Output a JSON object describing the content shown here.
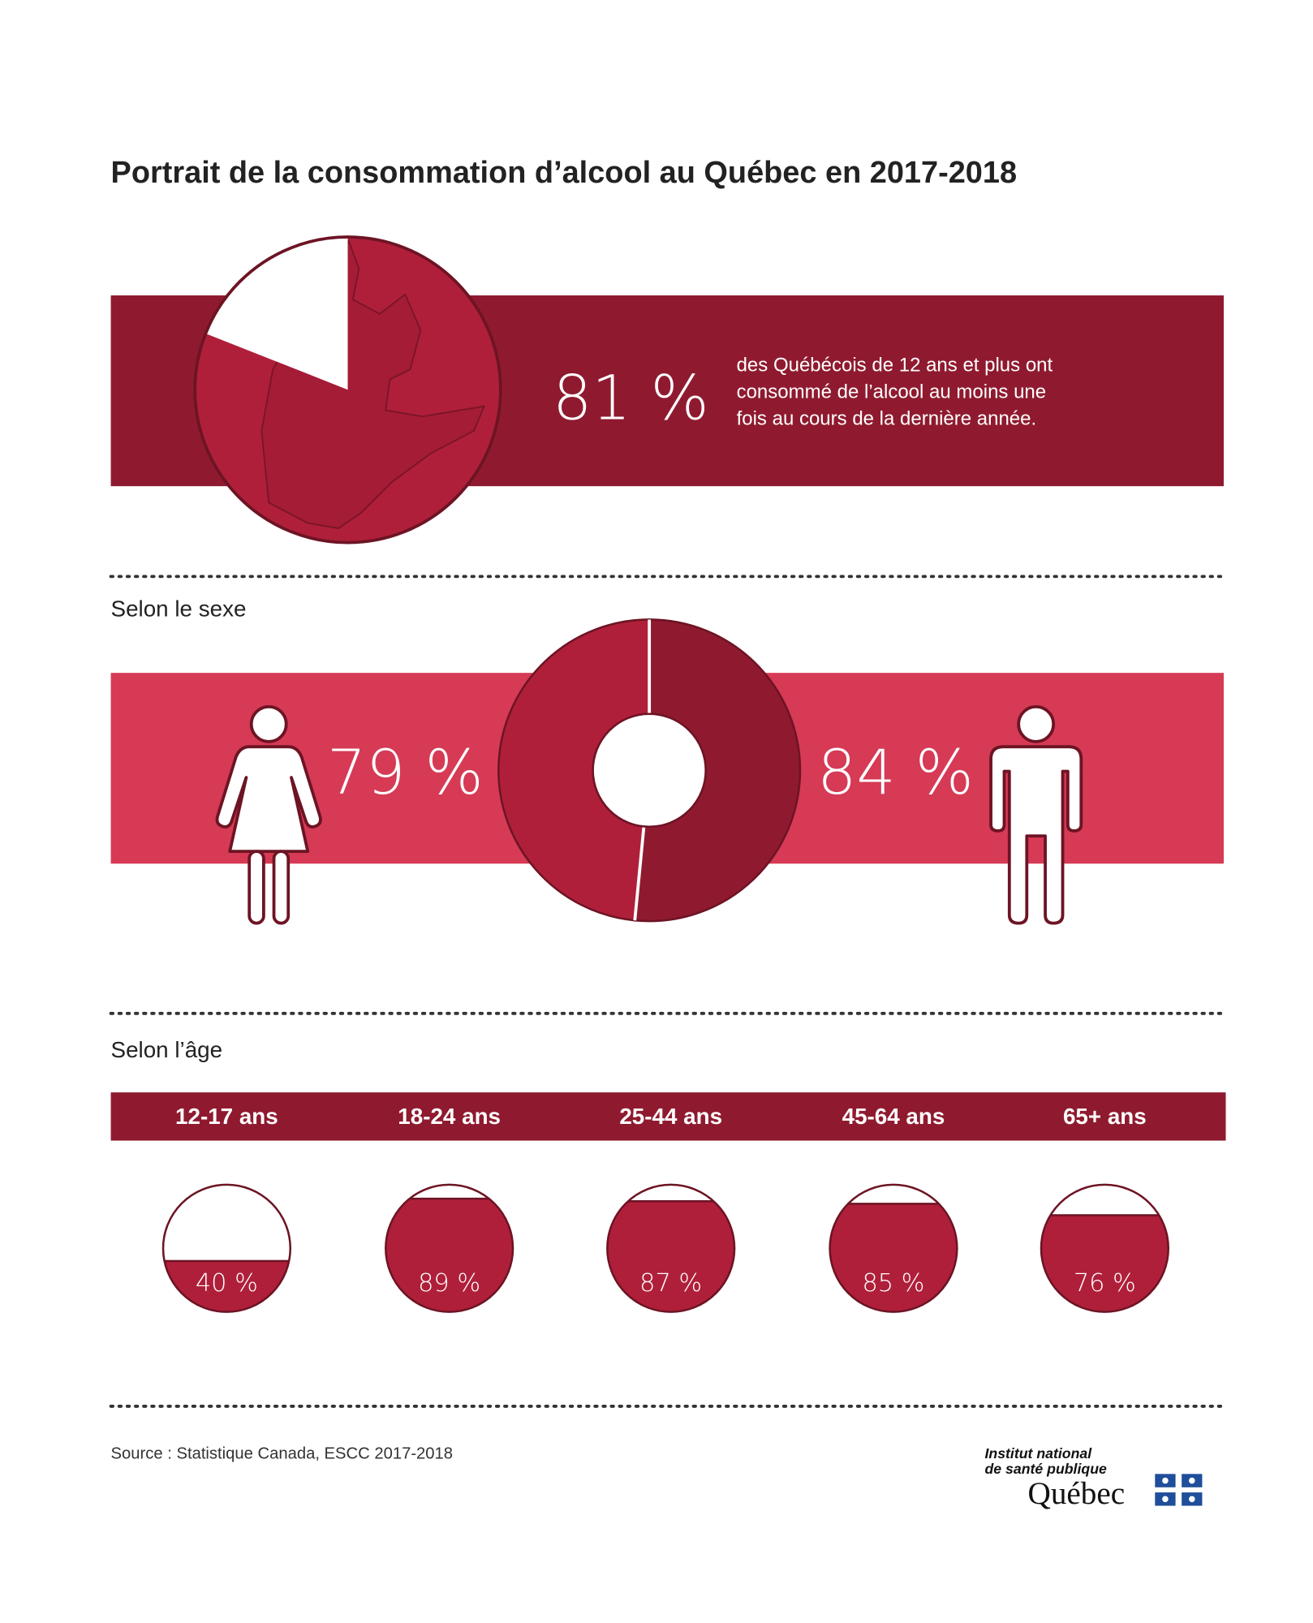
{
  "title": "Portrait de la consommation d’alcool au Québec en 2017-2018",
  "overall": {
    "value": 81,
    "label": "81 %",
    "text_lines": [
      "des Québécois de 12 ans et plus ont",
      "consommé de l’alcool au moins une",
      "fois au cours de la dernière année."
    ]
  },
  "by_sex": {
    "heading": "Selon le sexe",
    "women": {
      "value": 79,
      "label": "79 %"
    },
    "men": {
      "value": 84,
      "label": "84 %"
    }
  },
  "by_age": {
    "heading": "Selon l’âge",
    "groups": [
      {
        "name": "12-17 ans",
        "value": 40,
        "label": "40 %"
      },
      {
        "name": "18-24 ans",
        "value": 89,
        "label": "89 %"
      },
      {
        "name": "25-44 ans",
        "value": 87,
        "label": "87 %"
      },
      {
        "name": "45-64 ans",
        "value": 85,
        "label": "85 %"
      },
      {
        "name": "65+ ans",
        "value": 76,
        "label": "76 %"
      }
    ]
  },
  "source": "Source : Statistique Canada, ESCC 2017-2018",
  "logo": {
    "line1": "Institut national",
    "line2": "de santé publique",
    "line3": "Québec"
  }
}
